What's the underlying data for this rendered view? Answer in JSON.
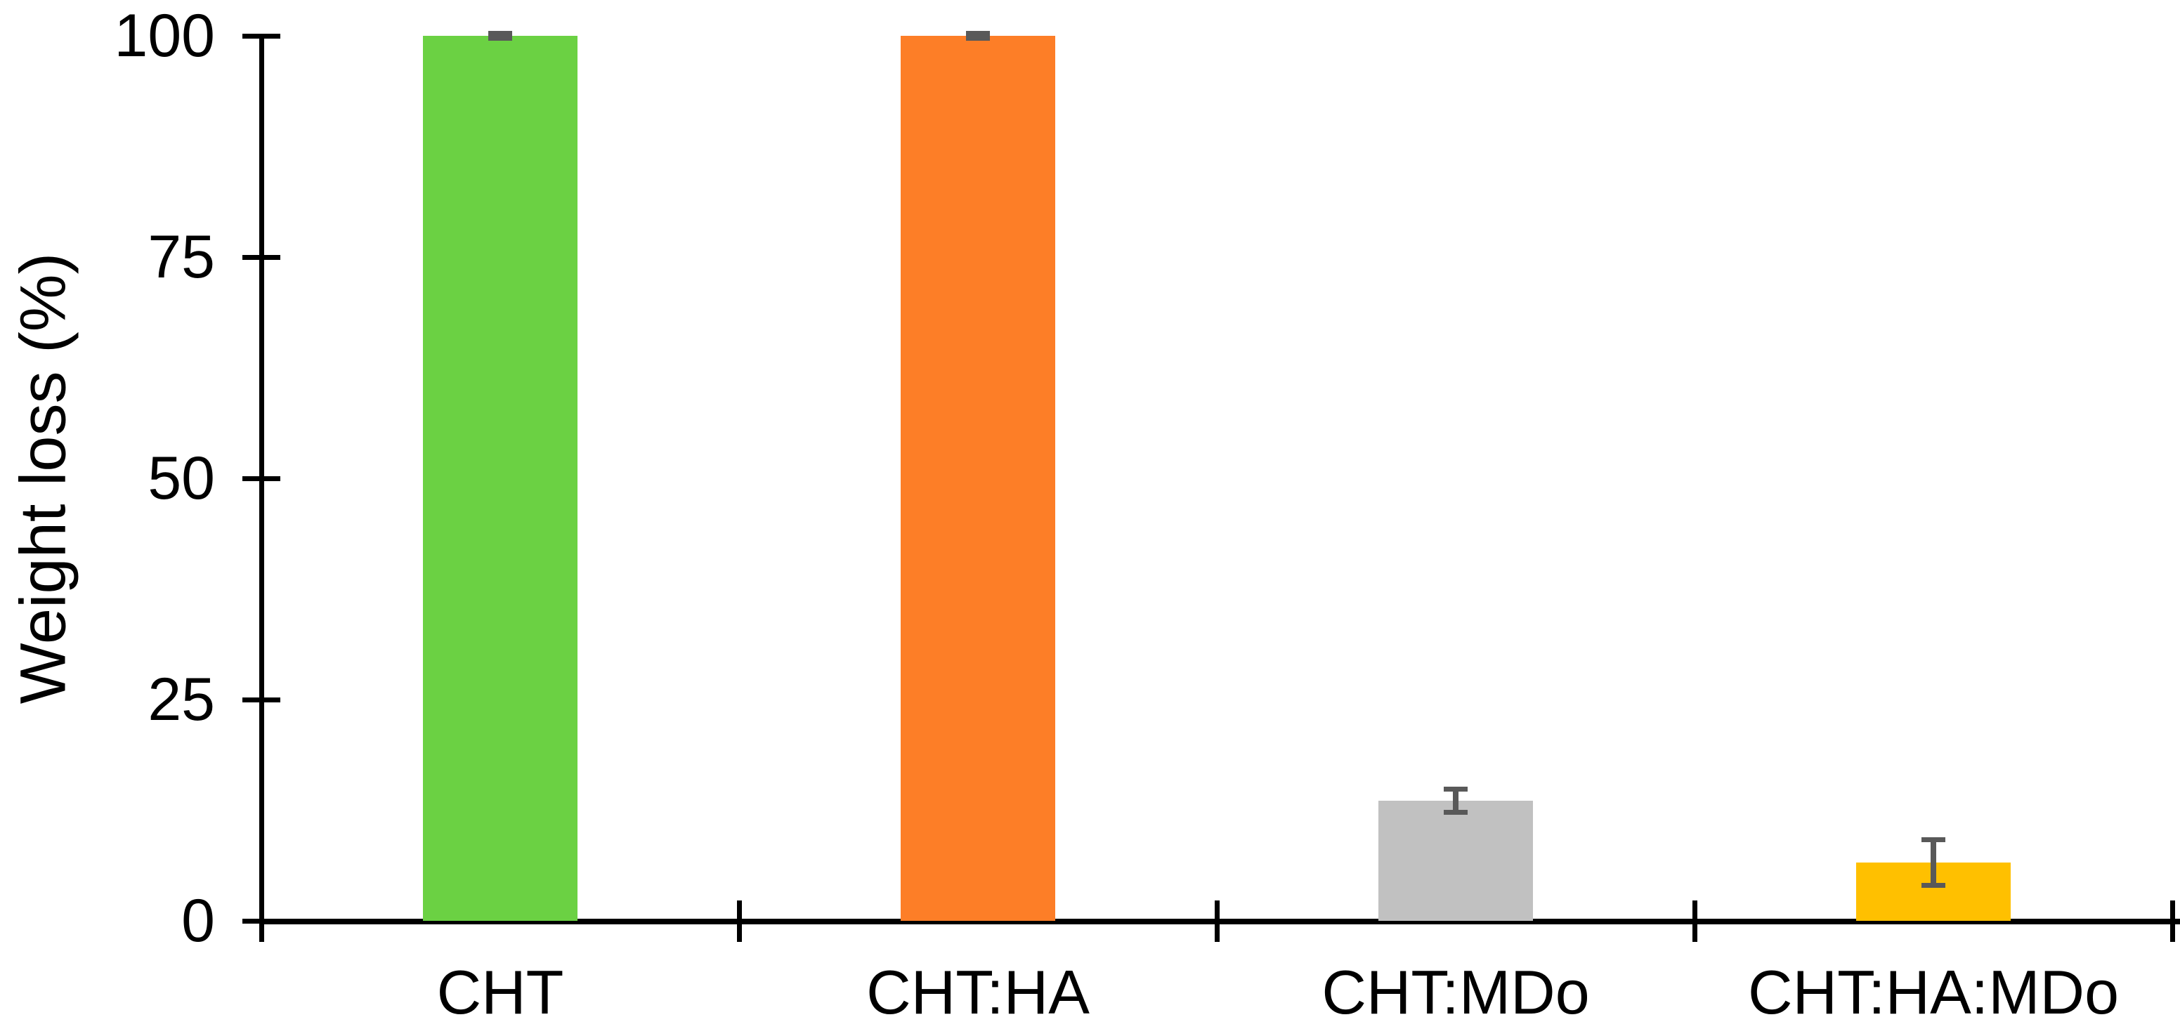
{
  "chart_data": {
    "type": "bar",
    "title": "",
    "xlabel": "",
    "ylabel": "Weight loss (%)",
    "ylim": [
      0,
      100
    ],
    "yticks": [
      0,
      25,
      50,
      75,
      100
    ],
    "categories": [
      "CHT",
      "CHT:HA",
      "CHT:MDo",
      "CHT:HA:MDo"
    ],
    "series": [
      {
        "name": "Weight loss",
        "values": [
          100,
          100,
          13.6,
          6.6
        ],
        "errors": [
          0.3,
          0.3,
          1.3,
          2.6
        ],
        "bar_colors": [
          "#6BD143",
          "#FD7E27",
          "#C1C1C1",
          "#FFC000"
        ]
      }
    ],
    "error_bar_color": "#595959",
    "axis_color": "#000000",
    "background_color": "#FFFFFF",
    "grid": false,
    "legend": false
  }
}
